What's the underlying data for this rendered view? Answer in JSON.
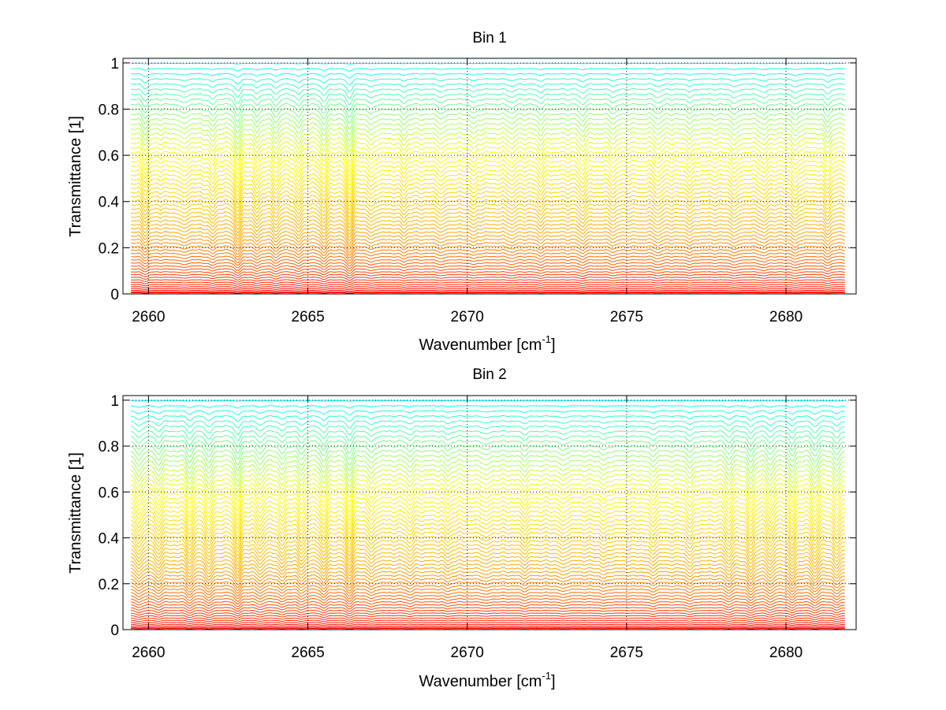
{
  "chart_data": [
    {
      "type": "line",
      "title": "Bin 1",
      "xlabel": "Wavenumber [cm",
      "xlabel_sup": "-1",
      "xlabel_suffix": "]",
      "ylabel": "Transmittance [1]",
      "xlim": [
        2659.2,
        2682.2
      ],
      "ylim": [
        0,
        1.02
      ],
      "xticks": [
        2660,
        2665,
        2670,
        2675,
        2680
      ],
      "xtick_labels": [
        "2660",
        "2665",
        "2670",
        "2675",
        "2680"
      ],
      "yticks": [
        0,
        0.2,
        0.4,
        0.6,
        0.8,
        1
      ],
      "ytick_labels": [
        "0",
        "0.2",
        "0.4",
        "0.6",
        "0.8",
        "1"
      ],
      "grid": true,
      "n_series": 60,
      "series_min_level": 0.005,
      "series_max_level": 0.998,
      "colormap": [
        "#ff0000",
        "#ffa500",
        "#ffff00",
        "#00ffff"
      ],
      "absorption_lines": [
        {
          "x": 2659.9,
          "depth": 0.6
        },
        {
          "x": 2661.1,
          "depth": 0.35
        },
        {
          "x": 2662.0,
          "depth": 0.45
        },
        {
          "x": 2662.8,
          "depth": 0.9
        },
        {
          "x": 2663.4,
          "depth": 0.5
        },
        {
          "x": 2664.0,
          "depth": 0.55
        },
        {
          "x": 2664.7,
          "depth": 0.6
        },
        {
          "x": 2665.5,
          "depth": 0.7
        },
        {
          "x": 2666.3,
          "depth": 1.0
        },
        {
          "x": 2667.0,
          "depth": 0.4
        },
        {
          "x": 2668.0,
          "depth": 0.35
        },
        {
          "x": 2669.2,
          "depth": 0.35
        },
        {
          "x": 2670.2,
          "depth": 0.3
        },
        {
          "x": 2671.4,
          "depth": 0.3
        },
        {
          "x": 2672.3,
          "depth": 0.35
        },
        {
          "x": 2673.6,
          "depth": 0.45
        },
        {
          "x": 2674.6,
          "depth": 0.3
        },
        {
          "x": 2676.0,
          "depth": 0.35
        },
        {
          "x": 2677.0,
          "depth": 0.3
        },
        {
          "x": 2678.4,
          "depth": 0.4
        },
        {
          "x": 2679.3,
          "depth": 0.4
        },
        {
          "x": 2680.3,
          "depth": 0.45
        },
        {
          "x": 2681.3,
          "depth": 0.5
        }
      ]
    },
    {
      "type": "line",
      "title": "Bin 2",
      "xlabel": "Wavenumber [cm",
      "xlabel_sup": "-1",
      "xlabel_suffix": "]",
      "ylabel": "Transmittance [1]",
      "xlim": [
        2659.2,
        2682.2
      ],
      "ylim": [
        0,
        1.02
      ],
      "xticks": [
        2660,
        2665,
        2670,
        2675,
        2680
      ],
      "xtick_labels": [
        "2660",
        "2665",
        "2670",
        "2675",
        "2680"
      ],
      "yticks": [
        0,
        0.2,
        0.4,
        0.6,
        0.8,
        1
      ],
      "ytick_labels": [
        "0",
        "0.2",
        "0.4",
        "0.6",
        "0.8",
        "1"
      ],
      "grid": true,
      "n_series": 60,
      "series_min_level": 0.005,
      "series_max_level": 0.998,
      "colormap": [
        "#ff0000",
        "#ffa500",
        "#ffff00",
        "#00ffff"
      ],
      "absorption_lines": [
        {
          "x": 2659.7,
          "depth": 0.7
        },
        {
          "x": 2660.3,
          "depth": 0.6
        },
        {
          "x": 2661.3,
          "depth": 0.75
        },
        {
          "x": 2661.9,
          "depth": 0.85
        },
        {
          "x": 2662.8,
          "depth": 0.95
        },
        {
          "x": 2663.5,
          "depth": 0.55
        },
        {
          "x": 2664.2,
          "depth": 0.55
        },
        {
          "x": 2664.8,
          "depth": 0.6
        },
        {
          "x": 2665.5,
          "depth": 0.7
        },
        {
          "x": 2666.3,
          "depth": 0.95
        },
        {
          "x": 2667.0,
          "depth": 0.5
        },
        {
          "x": 2668.2,
          "depth": 0.35
        },
        {
          "x": 2669.4,
          "depth": 0.3
        },
        {
          "x": 2670.6,
          "depth": 0.3
        },
        {
          "x": 2671.8,
          "depth": 0.3
        },
        {
          "x": 2673.0,
          "depth": 0.35
        },
        {
          "x": 2674.3,
          "depth": 0.3
        },
        {
          "x": 2675.8,
          "depth": 0.35
        },
        {
          "x": 2677.0,
          "depth": 0.45
        },
        {
          "x": 2678.2,
          "depth": 0.55
        },
        {
          "x": 2678.9,
          "depth": 0.8
        },
        {
          "x": 2679.5,
          "depth": 0.6
        },
        {
          "x": 2680.2,
          "depth": 0.7
        },
        {
          "x": 2680.9,
          "depth": 0.75
        },
        {
          "x": 2681.6,
          "depth": 0.65
        }
      ]
    }
  ]
}
